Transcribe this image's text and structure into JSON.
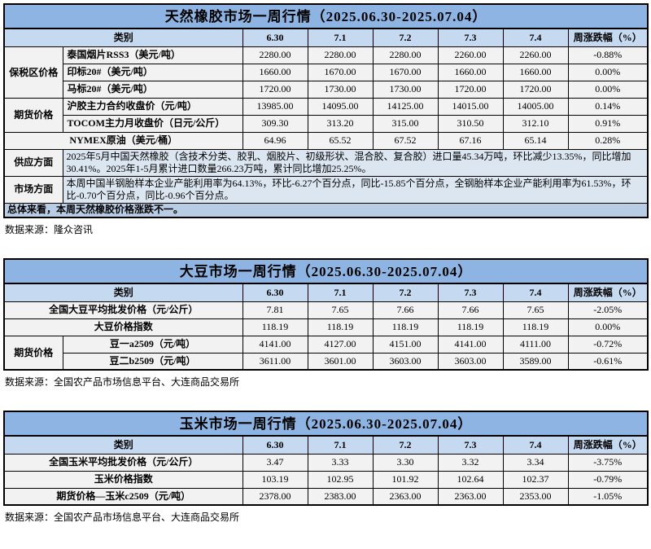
{
  "colors": {
    "title_bg": "#8DB4E2",
    "header_bg": "#C5D9F1",
    "row_bg": "#F2F2F2",
    "note_bg": "#DCE6F1",
    "summary_bg": "#B8CCE4",
    "border_color": "#000000",
    "text_color": "#000000"
  },
  "tables": [
    {
      "title": "天然橡胶市场一周行情（2025.06.30-2025.07.04）",
      "header": {
        "category": "类别",
        "dates": [
          "6.30",
          "7.1",
          "7.2",
          "7.3",
          "7.4"
        ],
        "change": "周涨跌幅（%）"
      },
      "rows": [
        {
          "group": "保税区价格",
          "group_rowspan": 3,
          "label": "泰国烟片RSS3（美元/吨）",
          "align": "left",
          "values": [
            "2280.00",
            "2280.00",
            "2280.00",
            "2260.00",
            "2260.00"
          ],
          "change": "-0.88%"
        },
        {
          "label": "印标20#（美元/吨）",
          "align": "left",
          "values": [
            "1660.00",
            "1670.00",
            "1670.00",
            "1660.00",
            "1660.00"
          ],
          "change": "0.00%"
        },
        {
          "label": "马标20#（美元/吨）",
          "align": "left",
          "values": [
            "1720.00",
            "1730.00",
            "1730.00",
            "1720.00",
            "1720.00"
          ],
          "change": "0.00%"
        },
        {
          "group": "期货价格",
          "group_rowspan": 2,
          "sep": true,
          "label": "沪胶主力合约收盘价（元/吨）",
          "align": "left",
          "values": [
            "13985.00",
            "14095.00",
            "14125.00",
            "14015.00",
            "14005.00"
          ],
          "change": "0.14%"
        },
        {
          "label": "TOCOM主力月收盘价（日元/公斤）",
          "align": "left",
          "values": [
            "309.30",
            "313.20",
            "315.00",
            "310.50",
            "312.10"
          ],
          "change": "0.91%"
        },
        {
          "full": true,
          "sep": true,
          "label": "NYMEX原油（美元/桶）",
          "align": "center",
          "values": [
            "64.96",
            "65.52",
            "67.52",
            "67.16",
            "65.14"
          ],
          "change": "0.28%"
        }
      ],
      "notes": [
        {
          "label": "供应方面",
          "text": "2025年5月中国天然橡胶（含技术分类、胶乳、烟胶片、初级形状、混合胶、复合胶）进口量45.34万吨，环比减少13.35%，同比增加30.41%。2025年1-5月累计进口数量266.23万吨，累计同比增加25.25%。"
        },
        {
          "label": "市场方面",
          "text": "本周中国半钢胎样本企业产能利用率为64.13%，环比-6.27个百分点，同比-15.85个百分点，全钢胎样本企业产能利用率为61.53%，环比-0.70个百分点，同比-0.96个百分点。"
        }
      ],
      "summary": "总体来看，本周天然橡胶价格涨跌不一。",
      "source": "数据来源：隆众咨讯"
    },
    {
      "title": "大豆市场一周行情（2025.06.30-2025.07.04）",
      "header": {
        "category": "类别",
        "dates": [
          "6.30",
          "7.1",
          "7.2",
          "7.3",
          "7.4"
        ],
        "change": "周涨跌幅（%）"
      },
      "rows": [
        {
          "full": true,
          "label": "全国大豆平均批发价格（元/公斤）",
          "align": "center",
          "values": [
            "7.81",
            "7.65",
            "7.66",
            "7.66",
            "7.65"
          ],
          "change": "-2.05%"
        },
        {
          "full": true,
          "sep": true,
          "label": "大豆价格指数",
          "align": "center",
          "values": [
            "118.19",
            "118.19",
            "118.19",
            "118.19",
            "118.19"
          ],
          "change": "0.00%"
        },
        {
          "group": "期货价格",
          "group_rowspan": 2,
          "sep": true,
          "label": "豆一a2509（元/吨）",
          "align": "center",
          "values": [
            "4141.00",
            "4127.00",
            "4151.00",
            "4141.00",
            "4111.00"
          ],
          "change": "-0.72%"
        },
        {
          "label": "豆二b2509（元/吨）",
          "align": "center",
          "values": [
            "3611.00",
            "3601.00",
            "3603.00",
            "3603.00",
            "3589.00"
          ],
          "change": "-0.61%"
        }
      ],
      "notes": [],
      "summary": null,
      "source": "数据来源：全国农产品市场信息平台、大连商品交易所"
    },
    {
      "title": "玉米市场一周行情（2025.06.30-2025.07.04）",
      "header": {
        "category": "类别",
        "dates": [
          "6.30",
          "7.1",
          "7.2",
          "7.3",
          "7.4"
        ],
        "change": "周涨跌幅（%）"
      },
      "rows": [
        {
          "full": true,
          "label": "全国玉米平均批发价格（元/公斤）",
          "align": "center",
          "values": [
            "3.47",
            "3.33",
            "3.30",
            "3.32",
            "3.34"
          ],
          "change": "-3.75%"
        },
        {
          "full": true,
          "sep": true,
          "label": "玉米价格指数",
          "align": "center",
          "values": [
            "103.19",
            "102.95",
            "101.92",
            "102.64",
            "102.37"
          ],
          "change": "-0.79%"
        },
        {
          "full": true,
          "sep": true,
          "label": "期货价格—玉米c2509（元/吨）",
          "align": "center",
          "values": [
            "2378.00",
            "2383.00",
            "2363.00",
            "2363.00",
            "2353.00"
          ],
          "change": "-1.05%"
        }
      ],
      "notes": [],
      "summary": null,
      "source": "数据来源：全国农产品市场信息平台、大连商品交易所"
    }
  ]
}
